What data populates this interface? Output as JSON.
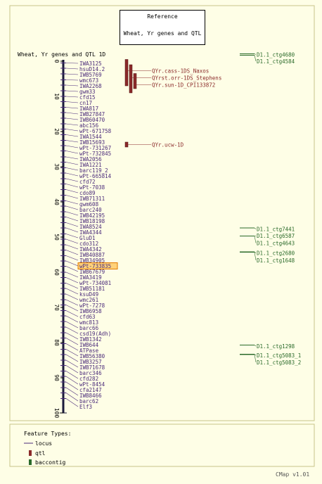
{
  "reference": {
    "title": "Reference",
    "map_name": "Wheat, Yr genes and QTL"
  },
  "map": {
    "title": "Wheat, Yr genes and QTL 1D",
    "ticks": [
      "0",
      "10",
      "20",
      "30",
      "40",
      "50",
      "60",
      "70",
      "80",
      "90",
      "100"
    ],
    "loci": [
      {
        "name": "IWA3125",
        "pos": 0.5
      },
      {
        "name": "hsuD14.2",
        "pos": 2.0
      },
      {
        "name": "IWB5769",
        "pos": 3.6
      },
      {
        "name": "wmc673",
        "pos": 5.3
      },
      {
        "name": "IWA2268",
        "pos": 6.8
      },
      {
        "name": "gwm33",
        "pos": 8.4
      },
      {
        "name": "cfd15",
        "pos": 10.0
      },
      {
        "name": "cn17",
        "pos": 11.5
      },
      {
        "name": "IWA817",
        "pos": 13.1
      },
      {
        "name": "IWB27847",
        "pos": 14.6
      },
      {
        "name": "IWB60470",
        "pos": 16.2
      },
      {
        "name": "abc156",
        "pos": 17.8
      },
      {
        "name": "wPt-671758",
        "pos": 19.3
      },
      {
        "name": "IWA1544",
        "pos": 20.9
      },
      {
        "name": "IWB15693",
        "pos": 22.5
      },
      {
        "name": "wPt-731267",
        "pos": 24.0
      },
      {
        "name": "wPt-732845",
        "pos": 25.5
      },
      {
        "name": "IWA2056",
        "pos": 27.2
      },
      {
        "name": "IWA1221",
        "pos": 28.7
      },
      {
        "name": "barc119_2",
        "pos": 30.3
      },
      {
        "name": "wPt-665814",
        "pos": 31.8
      },
      {
        "name": "cfd72",
        "pos": 33.4
      },
      {
        "name": "wPt-7038",
        "pos": 34.9
      },
      {
        "name": "cdo89",
        "pos": 36.5
      },
      {
        "name": "IWB71311",
        "pos": 38.1
      },
      {
        "name": "gwm608",
        "pos": 39.7
      },
      {
        "name": "barc240",
        "pos": 41.2
      },
      {
        "name": "IWB42195",
        "pos": 42.8
      },
      {
        "name": "IWB18198",
        "pos": 44.3
      },
      {
        "name": "IWA8524",
        "pos": 45.9
      },
      {
        "name": "IWA4344",
        "pos": 47.4
      },
      {
        "name": "GluD1",
        "pos": 49.1
      },
      {
        "name": "cdo312",
        "pos": 50.6
      },
      {
        "name": "IWA4342",
        "pos": 52.2
      },
      {
        "name": "IWB40887",
        "pos": 53.7
      },
      {
        "name": "IWB34905",
        "pos": 55.3
      },
      {
        "name": "wPt-733835",
        "pos": 56.8,
        "highlight": true
      },
      {
        "name": "IWB67679",
        "pos": 58.3
      },
      {
        "name": "IWA3419",
        "pos": 60.0
      },
      {
        "name": "wPt-734081",
        "pos": 61.5
      },
      {
        "name": "IWB51181",
        "pos": 63.1
      },
      {
        "name": "ksuD49",
        "pos": 64.6
      },
      {
        "name": "wmc261",
        "pos": 66.2
      },
      {
        "name": "wPt-7278",
        "pos": 67.8
      },
      {
        "name": "IWB6958",
        "pos": 69.3
      },
      {
        "name": "cfd63",
        "pos": 70.9
      },
      {
        "name": "wmc813",
        "pos": 72.4
      },
      {
        "name": "barc66",
        "pos": 74.0
      },
      {
        "name": "csd19(Adh)",
        "pos": 75.6
      },
      {
        "name": "IWB1342",
        "pos": 77.2
      },
      {
        "name": "IWB644",
        "pos": 78.7
      },
      {
        "name": "ATPase",
        "pos": 80.3
      },
      {
        "name": "IWB56380",
        "pos": 81.9
      },
      {
        "name": "IWB3257",
        "pos": 83.4
      },
      {
        "name": "IWB71678",
        "pos": 85.0
      },
      {
        "name": "barc346",
        "pos": 86.5
      },
      {
        "name": "cfd282",
        "pos": 88.1
      },
      {
        "name": "wPt-8454",
        "pos": 89.6
      },
      {
        "name": "cfa2147",
        "pos": 91.2
      },
      {
        "name": "IWB8466",
        "pos": 92.8
      },
      {
        "name": "barc62",
        "pos": 94.3
      },
      {
        "name": "Elf3",
        "pos": 95.9
      }
    ],
    "qtls": [
      {
        "name": "QYr.cass-1DS_Naxos",
        "start": -0.5,
        "end": 7.0,
        "col": 0,
        "label_pos": 2.7
      },
      {
        "name": "QYrst.orr-1DS_Stephens",
        "start": 1.0,
        "end": 9.0,
        "col": 1,
        "label_pos": 4.7
      },
      {
        "name": "QYr.sun-1D_CPI133872",
        "start": 3.5,
        "end": 7.8,
        "col": 2,
        "label_pos": 6.7
      },
      {
        "name": "QYr.ucw-1D",
        "start": 23.0,
        "end": 24.4,
        "col": 0,
        "label_pos": 23.7
      }
    ],
    "contigs": [
      {
        "name": "D1.1_ctg4680",
        "pos": -2.1,
        "label_pos": -1.9
      },
      {
        "name": "D1.1_ctg4584",
        "pos": -1.7,
        "label_pos": 0.0
      },
      {
        "name": "D1.1_ctg7441",
        "pos": 47.4,
        "label_pos": 47.7
      },
      {
        "name": "D1.1_ctg6587",
        "pos": 49.7,
        "label_pos": 49.6
      },
      {
        "name": "D1.1_ctg4643",
        "pos": 49.7,
        "label_pos": 51.7
      },
      {
        "name": "D1.1_ctg2680",
        "pos": 54.2,
        "label_pos": 54.5
      },
      {
        "name": "D1.1_ctg1648",
        "pos": 54.3,
        "label_pos": 56.6
      },
      {
        "name": "D1.1_ctg1298",
        "pos": 80.7,
        "label_pos": 81.0
      },
      {
        "name": "D1.1_ctg5083_1",
        "pos": 83.3,
        "label_pos": 83.6
      },
      {
        "name": "D1.1_ctg5083_2",
        "pos": 83.4,
        "label_pos": 85.6
      }
    ]
  },
  "legend": {
    "title": "Feature Types:",
    "items": [
      {
        "label": "locus",
        "kind": "locus"
      },
      {
        "label": "qtl",
        "kind": "qtl"
      },
      {
        "label": "baccontig",
        "kind": "baccontig"
      }
    ]
  },
  "colors": {
    "locus": "#4a2a7a",
    "qtl": "#8b2a2a",
    "contig": "#2a6a2a",
    "highlight": "#ffd27a",
    "background": "#fefee6",
    "border": "#c8c48a"
  },
  "footer": {
    "brand": "CMap v1.01"
  }
}
